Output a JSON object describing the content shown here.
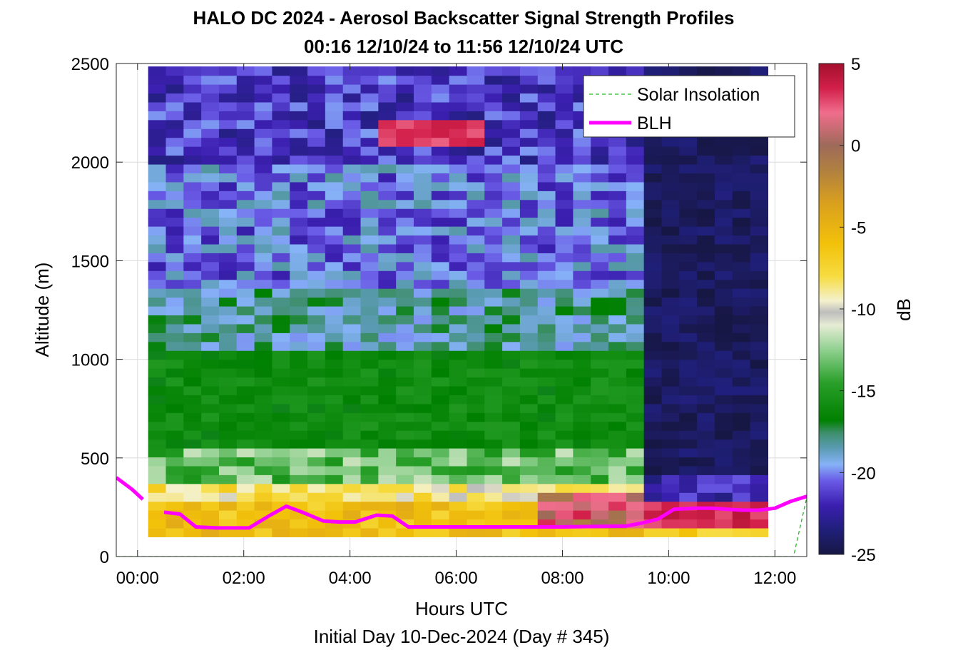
{
  "chart_data": {
    "type": "heatmap",
    "title": "HALO DC 2024 - Aerosol Backscatter Signal Strength Profiles",
    "subtitle": "00:16 12/10/24 to 11:56 12/10/24  UTC",
    "xlabel": "Hours UTC",
    "xlabel2": "Initial Day 10-Dec-2024 (Day # 345)",
    "ylabel": "Altitude (m)",
    "colorbar_label": "dB",
    "xlim": [
      -0.4,
      12.6
    ],
    "ylim": [
      0,
      2500
    ],
    "xticks": [
      {
        "value": 0,
        "label": "00:00"
      },
      {
        "value": 2,
        "label": "02:00"
      },
      {
        "value": 4,
        "label": "04:00"
      },
      {
        "value": 6,
        "label": "06:00"
      },
      {
        "value": 8,
        "label": "08:00"
      },
      {
        "value": 10,
        "label": "10:00"
      },
      {
        "value": 12,
        "label": "12:00"
      }
    ],
    "yticks": [
      {
        "value": 0,
        "label": "0"
      },
      {
        "value": 500,
        "label": "500"
      },
      {
        "value": 1000,
        "label": "1000"
      },
      {
        "value": 1500,
        "label": "1500"
      },
      {
        "value": 2000,
        "label": "2000"
      },
      {
        "value": 2500,
        "label": "2500"
      }
    ],
    "clim": [
      -25,
      5
    ],
    "cticks": [
      {
        "value": 5,
        "label": "5"
      },
      {
        "value": 0,
        "label": "0"
      },
      {
        "value": -5,
        "label": "-5"
      },
      {
        "value": -10,
        "label": "-10"
      },
      {
        "value": -15,
        "label": "-15"
      },
      {
        "value": -20,
        "label": "-20"
      },
      {
        "value": -25,
        "label": "-25"
      }
    ],
    "heatmap": {
      "x_start": 0.2,
      "x_end": 12.0,
      "y_start": 100,
      "y_end": 2500,
      "approx_cell_minutes": 20,
      "approx_cell_height_m": 45,
      "regions": [
        {
          "x0": 0.2,
          "x1": 9.7,
          "y0": 2000,
          "y1": 2500,
          "db": -21.5,
          "jitter": 1.8
        },
        {
          "x0": 0.2,
          "x1": 9.7,
          "y0": 1350,
          "y1": 2000,
          "db": -20.2,
          "jitter": 2.0
        },
        {
          "x0": 0.2,
          "x1": 9.7,
          "y0": 1050,
          "y1": 1350,
          "db": -18.3,
          "jitter": 1.6
        },
        {
          "x0": 0.2,
          "x1": 9.7,
          "y0": 550,
          "y1": 1050,
          "db": -16.0,
          "jitter": 1.0
        },
        {
          "x0": 0.2,
          "x1": 9.7,
          "y0": 390,
          "y1": 550,
          "db": -13.5,
          "jitter": 2.0
        },
        {
          "x0": 0.2,
          "x1": 9.7,
          "y0": 270,
          "y1": 390,
          "db": -8.5,
          "jitter": 1.8
        },
        {
          "x0": 0.2,
          "x1": 9.7,
          "y0": 100,
          "y1": 270,
          "db": -6.0,
          "jitter": 1.6
        },
        {
          "x0": 4.6,
          "x1": 6.5,
          "y0": 2080,
          "y1": 2230,
          "db": 3.0,
          "jitter": 0.8
        },
        {
          "x0": 7.6,
          "x1": 9.7,
          "y0": 130,
          "y1": 330,
          "db": 1.0,
          "jitter": 2.5
        },
        {
          "x0": 9.7,
          "x1": 12.0,
          "y0": 400,
          "y1": 2500,
          "db": -24.2,
          "jitter": 0.8
        },
        {
          "x0": 9.7,
          "x1": 12.0,
          "y0": 280,
          "y1": 400,
          "db": -22.0,
          "jitter": 1.5
        },
        {
          "x0": 9.7,
          "x1": 12.0,
          "y0": 150,
          "y1": 280,
          "db": 3.5,
          "jitter": 1.0
        },
        {
          "x0": 9.7,
          "x1": 12.0,
          "y0": 100,
          "y1": 150,
          "db": -7.0,
          "jitter": 1.5
        }
      ]
    },
    "series": [
      {
        "name": "Solar Insolation",
        "color": "#22bb22",
        "style": "dashed",
        "x": [
          -0.4,
          12.35,
          12.6
        ],
        "y": [
          0,
          0,
          300
        ]
      },
      {
        "name": "BLH",
        "color": "#ff00ff",
        "style": "solid",
        "segments": [
          {
            "x": [
              -0.4,
              -0.1,
              0.1
            ],
            "y": [
              400,
              340,
              290
            ]
          },
          {
            "x": [
              0.5,
              0.8,
              1.1,
              1.5,
              1.8,
              2.1,
              2.5,
              2.8,
              3.1,
              3.5,
              3.8,
              4.1,
              4.5,
              4.8,
              5.1,
              5.5,
              6.0,
              7.0,
              8.0,
              9.2,
              9.5,
              9.8,
              10.1,
              10.5,
              10.8,
              11.1,
              11.4,
              11.7,
              12.0,
              12.3,
              12.6
            ],
            "y": [
              225,
              215,
              150,
              145,
              145,
              145,
              210,
              255,
              225,
              180,
              175,
              175,
              210,
              205,
              150,
              150,
              150,
              150,
              150,
              155,
              170,
              190,
              240,
              245,
              245,
              240,
              235,
              235,
              245,
              280,
              305
            ]
          }
        ]
      }
    ],
    "legend": {
      "placement": "top-right",
      "entries": [
        "Solar Insolation",
        "BLH"
      ]
    }
  }
}
